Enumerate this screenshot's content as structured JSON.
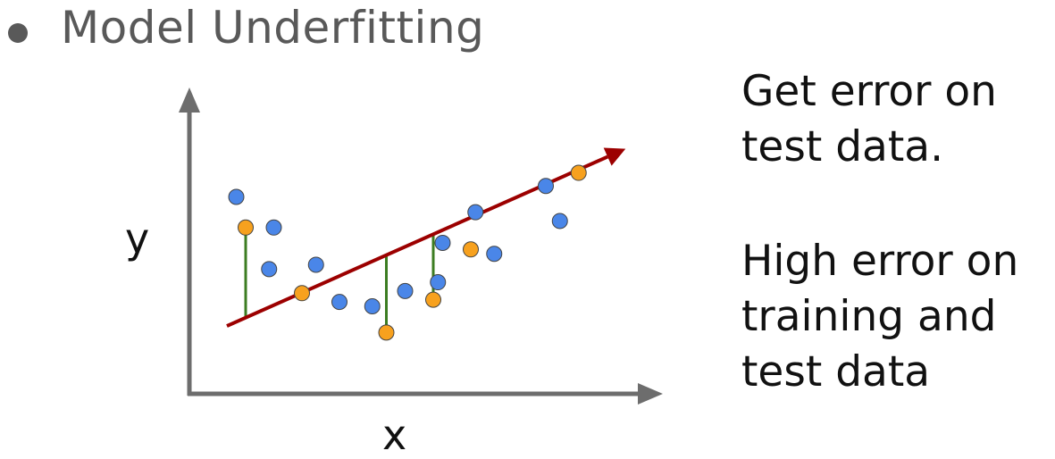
{
  "bullet": {
    "title": "Model Underfitting"
  },
  "axes": {
    "y_label": "y",
    "x_label": "x"
  },
  "notes": {
    "test": [
      "Get error on",
      "test data."
    ],
    "train": [
      "High error on",
      "training and",
      "test data"
    ]
  },
  "colors": {
    "training_point": "#4a86e8",
    "test_point": "#f7a11e",
    "fit_line": "#9c0000",
    "error_segment": "#3c7d22",
    "axis": "#6d6d6d"
  },
  "chart_data": {
    "type": "scatter",
    "series": [
      {
        "points": [
          [
            1,
            9
          ],
          [
            1.8,
            7.6
          ],
          [
            1.7,
            5.7
          ],
          [
            2.7,
            5.9
          ],
          [
            3.2,
            4.2
          ],
          [
            3.9,
            4.0
          ],
          [
            4.6,
            4.7
          ],
          [
            5.3,
            5.1
          ],
          [
            5.4,
            6.9
          ],
          [
            6.1,
            8.3
          ],
          [
            6.5,
            6.4
          ],
          [
            7.6,
            9.5
          ],
          [
            7.9,
            7.9
          ]
        ]
      },
      {
        "points": [
          [
            1.2,
            7.6
          ],
          [
            2.4,
            4.6
          ],
          [
            4.2,
            2.8
          ],
          [
            5.2,
            4.3
          ],
          [
            6.0,
            6.6
          ],
          [
            8.3,
            10.1
          ]
        ]
      }
    ],
    "fit_line": {
      "from": [
        0.8,
        3.1
      ],
      "to": [
        9.3,
        11.2
      ]
    },
    "error_segments": [
      [
        1.2,
        7.6
      ],
      [
        4.2,
        2.8
      ],
      [
        5.2,
        4.3
      ],
      [
        8.3,
        10.1
      ]
    ]
  }
}
